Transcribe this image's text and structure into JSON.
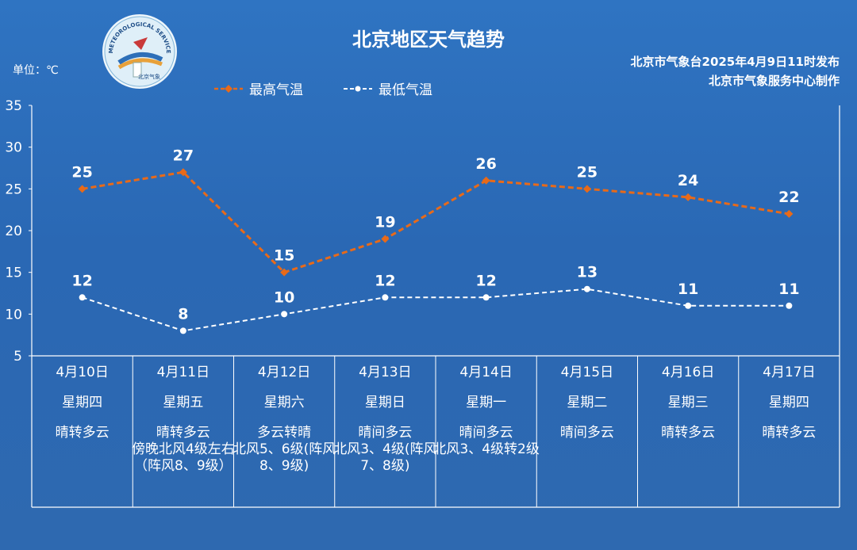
{
  "header": {
    "title": "北京地区天气趋势",
    "issuer_line1": "北京市气象台2025年4月9日11时发布",
    "issuer_line2": "北京市气象服务中心制作",
    "unit": "单位：℃",
    "logo_text": "METEOROLOGICAL SERVICE",
    "logo_sub": "北京气象"
  },
  "colors": {
    "high": "#e86a19",
    "low": "#ffffff",
    "grid": "#ffffff"
  },
  "chart_data": {
    "type": "line",
    "title": "北京地区天气趋势",
    "ylabel": "单位：℃",
    "ylim": [
      5,
      35
    ],
    "yticks": [
      5,
      10,
      15,
      20,
      25,
      30,
      35
    ],
    "categories": [
      "4月10日",
      "4月11日",
      "4月12日",
      "4月13日",
      "4月14日",
      "4月15日",
      "4月16日",
      "4月17日"
    ],
    "series": [
      {
        "name": "最高气温",
        "values": [
          25,
          27,
          15,
          19,
          26,
          25,
          24,
          22
        ],
        "color": "#e86a19",
        "style": "dashed-diamond"
      },
      {
        "name": "最低气温",
        "values": [
          12,
          8,
          10,
          12,
          12,
          13,
          11,
          11
        ],
        "color": "#ffffff",
        "style": "dashed-circle"
      }
    ],
    "legend": "top-center",
    "grid": false
  },
  "days": [
    {
      "date": "4月10日",
      "weekday": "星期四",
      "weather": "晴转多云",
      "wind": ""
    },
    {
      "date": "4月11日",
      "weekday": "星期五",
      "weather": "晴转多云",
      "wind": "傍晚北风4级左右（阵风8、9级）"
    },
    {
      "date": "4月12日",
      "weekday": "星期六",
      "weather": "多云转晴",
      "wind": "北风5、6级(阵风8、9级)"
    },
    {
      "date": "4月13日",
      "weekday": "星期日",
      "weather": "晴间多云",
      "wind": "北风3、4级(阵风7、8级)"
    },
    {
      "date": "4月14日",
      "weekday": "星期一",
      "weather": "晴间多云",
      "wind": "北风3、4级转2级"
    },
    {
      "date": "4月15日",
      "weekday": "星期二",
      "weather": "晴间多云",
      "wind": ""
    },
    {
      "date": "4月16日",
      "weekday": "星期三",
      "weather": "晴转多云",
      "wind": ""
    },
    {
      "date": "4月17日",
      "weekday": "星期四",
      "weather": "晴转多云",
      "wind": ""
    }
  ]
}
